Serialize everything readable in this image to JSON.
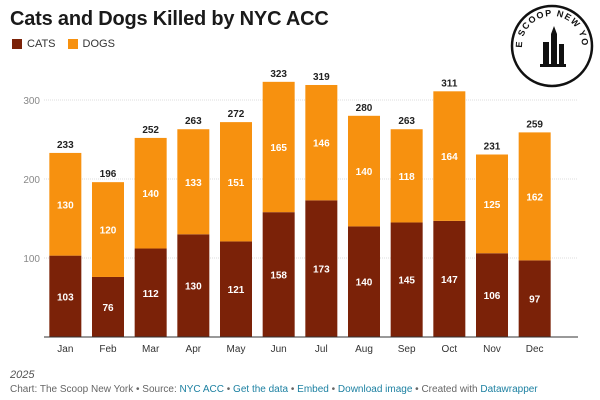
{
  "colors": {
    "cats": "#7b2208",
    "dogs": "#f7910f",
    "grid": "#dddddd",
    "link": "#1d81a2"
  },
  "logo": {
    "text": "THE SCOOP NEW YORK",
    "icon": "nyc-skyline-icon"
  },
  "footer": {
    "year": "2025",
    "chart_by": "Chart: The Scoop New York",
    "sep1": " • Source: ",
    "source": "NYC ACC",
    "sep2": " • ",
    "get_data": "Get the data",
    "sep3": " • ",
    "embed": "Embed",
    "sep4": " • ",
    "download": "Download image",
    "sep5": " • Created with ",
    "datawrapper": "Datawrapper"
  },
  "chart_data": {
    "type": "bar",
    "stacked": true,
    "title": "Cats and Dogs Killed by NYC ACC",
    "categories": [
      "Jan",
      "Feb",
      "Mar",
      "Apr",
      "May",
      "Jun",
      "Jul",
      "Aug",
      "Sep",
      "Oct",
      "Nov",
      "Dec"
    ],
    "series": [
      {
        "name": "CATS",
        "values": [
          103,
          76,
          112,
          130,
          121,
          158,
          173,
          140,
          145,
          147,
          106,
          97
        ]
      },
      {
        "name": "DOGS",
        "values": [
          130,
          120,
          140,
          133,
          151,
          165,
          146,
          140,
          118,
          164,
          125,
          162
        ]
      }
    ],
    "totals": [
      233,
      196,
      252,
      263,
      272,
      323,
      319,
      280,
      263,
      311,
      231,
      259
    ],
    "yticks": [
      100,
      200,
      300
    ],
    "ylim": [
      0,
      340
    ],
    "xlabel": "",
    "ylabel": "",
    "grid": true,
    "legend_position": "top-left"
  }
}
